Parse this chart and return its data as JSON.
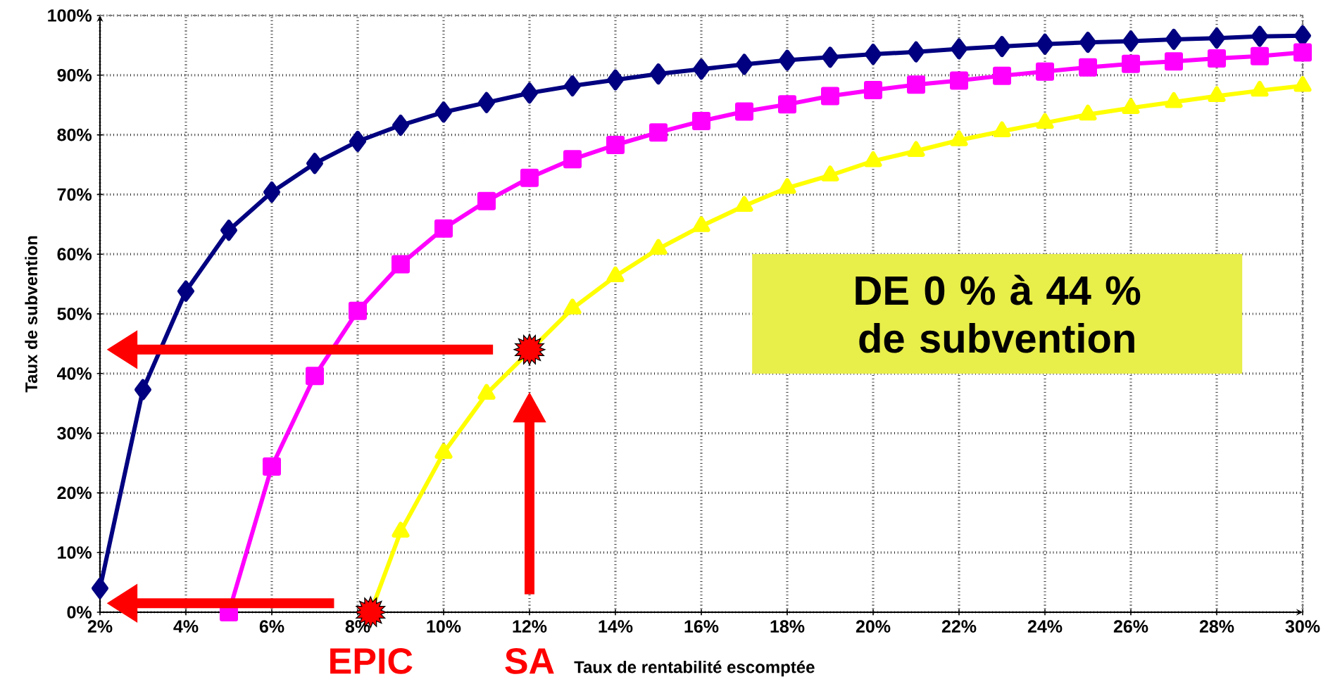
{
  "chart_data": {
    "type": "line",
    "xlabel": "Taux de rentabilité escomptée",
    "ylabel": "Taux de subvention",
    "annotations": [
      "DE 0 % à 44 % de subvention",
      "EPIC",
      "SA"
    ],
    "x": [
      2,
      3,
      4,
      5,
      6,
      7,
      8,
      9,
      10,
      11,
      12,
      13,
      14,
      15,
      16,
      17,
      18,
      19,
      20,
      21,
      22,
      23,
      24,
      25,
      26,
      27,
      28,
      29,
      30
    ],
    "series": [
      {
        "color": "#000080",
        "marker": "diamond",
        "values": [
          4,
          37.3,
          53.8,
          64,
          70.4,
          75.2,
          78.9,
          81.6,
          83.8,
          85.4,
          87,
          88.2,
          89.2,
          90.2,
          91,
          91.8,
          92.5,
          93,
          93.5,
          93.9,
          94.4,
          94.8,
          95.2,
          95.5,
          95.7,
          96,
          96.2,
          96.5,
          96.6
        ]
      },
      {
        "color": "#ff00ff",
        "marker": "square",
        "x": [
          5,
          6,
          7,
          8,
          9,
          10,
          11,
          12,
          13,
          14,
          15,
          16,
          17,
          18,
          19,
          20,
          21,
          22,
          23,
          24,
          25,
          26,
          27,
          28,
          29,
          30
        ],
        "values": [
          0,
          24.4,
          39.6,
          50.5,
          58.3,
          64.3,
          68.9,
          72.8,
          75.9,
          78.3,
          80.4,
          82.3,
          83.9,
          85.1,
          86.5,
          87.5,
          88.4,
          89.1,
          89.9,
          90.6,
          91.3,
          91.9,
          92.3,
          92.8,
          93.2,
          93.8
        ]
      },
      {
        "color": "#ffff00",
        "marker": "triangle",
        "x": [
          8.3,
          9,
          10,
          11,
          12,
          13,
          14,
          15,
          16,
          17,
          18,
          19,
          20,
          21,
          22,
          23,
          24,
          25,
          26,
          27,
          28,
          29,
          30
        ],
        "values": [
          0,
          13.5,
          26.7,
          36.6,
          null,
          50.9,
          56.3,
          60.9,
          64.7,
          68.1,
          71.1,
          73.2,
          75.6,
          77.3,
          79.1,
          80.6,
          82,
          83.4,
          84.5,
          85.5,
          86.5,
          87.4,
          88.2
        ]
      },
      {
        "type": "scatter",
        "color": "#ff0000",
        "marker": "star",
        "x": [
          8.3,
          12
        ],
        "values": [
          0,
          44
        ]
      }
    ],
    "xlim": [
      2,
      30
    ],
    "ylim": [
      0,
      100
    ],
    "xticks": [
      {
        "value": 2,
        "label": "2%"
      },
      {
        "value": 4,
        "label": "4%"
      },
      {
        "value": 6,
        "label": "6%"
      },
      {
        "value": 8,
        "label": "8%"
      },
      {
        "value": 10,
        "label": "10%"
      },
      {
        "value": 12,
        "label": "12%"
      },
      {
        "value": 14,
        "label": "14%"
      },
      {
        "value": 16,
        "label": "16%"
      },
      {
        "value": 18,
        "label": "18%"
      },
      {
        "value": 20,
        "label": "20%"
      },
      {
        "value": 22,
        "label": "22%"
      },
      {
        "value": 24,
        "label": "24%"
      },
      {
        "value": 26,
        "label": "26%"
      },
      {
        "value": 28,
        "label": "28%"
      },
      {
        "value": 30,
        "label": "30%"
      }
    ],
    "yticks": [
      {
        "value": 0,
        "label": "0%"
      },
      {
        "value": 10,
        "label": "10%"
      },
      {
        "value": 20,
        "label": "20%"
      },
      {
        "value": 30,
        "label": "30%"
      },
      {
        "value": 40,
        "label": "40%"
      },
      {
        "value": 50,
        "label": "50%"
      },
      {
        "value": 60,
        "label": "60%"
      },
      {
        "value": 70,
        "label": "70%"
      },
      {
        "value": 80,
        "label": "80%"
      },
      {
        "value": 90,
        "label": "90%"
      },
      {
        "value": 100,
        "label": "100%"
      }
    ],
    "grid": true,
    "line_style": "solid"
  }
}
